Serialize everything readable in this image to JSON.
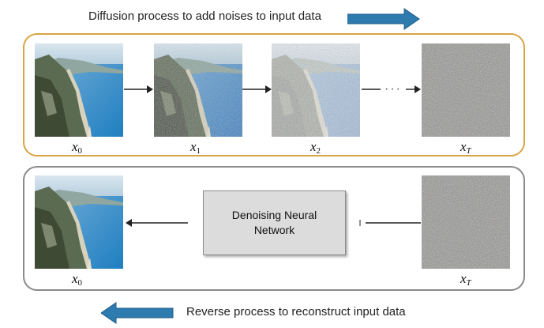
{
  "top_caption": "Diffusion process to add noises to input data",
  "bottom_caption": "Reverse process to reconstruct input data",
  "forward_row": {
    "frames": [
      {
        "var": "x",
        "sub": "0"
      },
      {
        "var": "x",
        "sub": "1"
      },
      {
        "var": "x",
        "sub": "2"
      },
      {
        "var": "x",
        "sub": "T"
      }
    ],
    "ellipsis": "···"
  },
  "reverse_row": {
    "output_frame": {
      "var": "x",
      "sub": "0"
    },
    "input_frame": {
      "var": "x",
      "sub": "T"
    },
    "network_line1": "Denoising Neural",
    "network_line2": "Network"
  },
  "colors": {
    "forward_border": "#d9a441",
    "reverse_border": "#8a8a8a",
    "big_arrow": "#2e7bb0",
    "network_fill": "#dcdcdc"
  },
  "icons": [
    "right-block-arrow-icon",
    "left-block-arrow-icon",
    "right-arrow-icon",
    "left-arrow-icon"
  ]
}
